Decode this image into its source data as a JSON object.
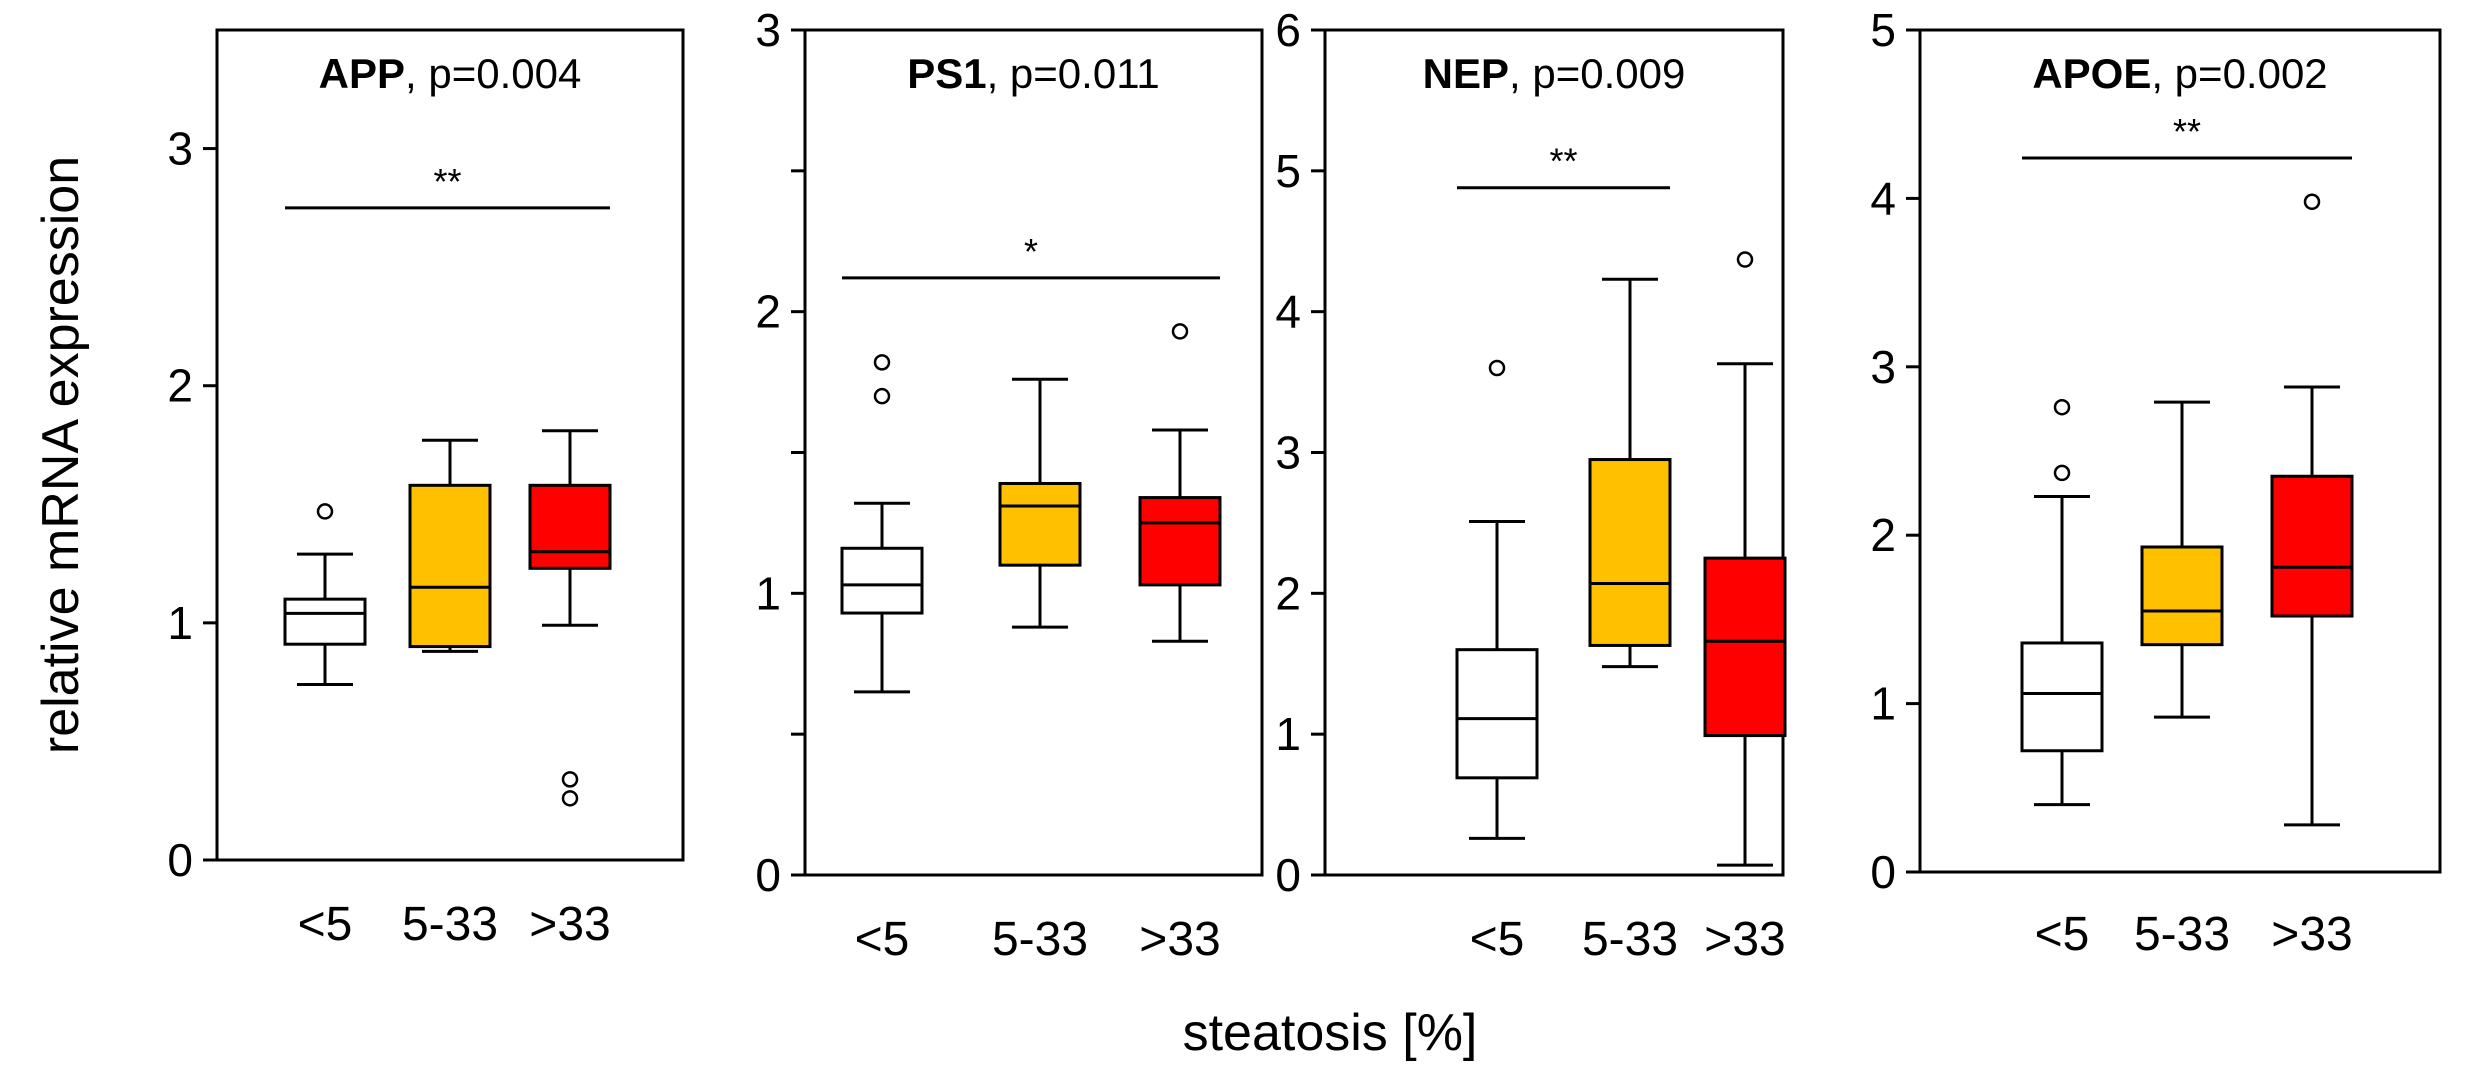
{
  "figure": {
    "ylabel": "relative mRNA expression",
    "xlabel": "steatosis [%]"
  },
  "colors": {
    "low": "#ffffff",
    "mid": "#ffc000",
    "high": "#ff0000"
  },
  "chart_data": [
    {
      "type": "box",
      "gene": "APP",
      "title_suffix": ", p=0.004",
      "categories": [
        "<5",
        "5-33",
        ">33"
      ],
      "ylim": [
        0,
        3.5
      ],
      "yticks": [
        0,
        1,
        2,
        3
      ],
      "ytick_labels": [
        "0",
        "1",
        "2",
        "3"
      ],
      "boxes": [
        {
          "category": "<5",
          "q1": 0.91,
          "median": 1.04,
          "q3": 1.1,
          "whisker_low": 0.74,
          "whisker_high": 1.29,
          "outliers": [
            1.47
          ]
        },
        {
          "category": "5-33",
          "q1": 0.9,
          "median": 1.15,
          "q3": 1.58,
          "whisker_low": 0.88,
          "whisker_high": 1.77,
          "outliers": []
        },
        {
          "category": ">33",
          "q1": 1.23,
          "median": 1.3,
          "q3": 1.58,
          "whisker_low": 0.99,
          "whisker_high": 1.81,
          "outliers": [
            0.34,
            0.26
          ]
        }
      ],
      "significance": {
        "from": "<5",
        "to": ">33",
        "level": 2.75,
        "label": "**"
      }
    },
    {
      "type": "box",
      "gene": "PS1",
      "title_suffix": ", p=0.011",
      "categories": [
        "<5",
        "5-33",
        ">33"
      ],
      "ylim": [
        0,
        3
      ],
      "yticks": [
        0,
        0.5,
        1,
        1.5,
        2,
        2.5,
        3
      ],
      "ytick_labels": [
        "0",
        "",
        "1",
        "",
        "2",
        "",
        "3"
      ],
      "boxes": [
        {
          "category": "<5",
          "q1": 0.93,
          "median": 1.03,
          "q3": 1.16,
          "whisker_low": 0.65,
          "whisker_high": 1.32,
          "outliers": [
            1.82,
            1.7
          ]
        },
        {
          "category": "5-33",
          "q1": 1.1,
          "median": 1.31,
          "q3": 1.39,
          "whisker_low": 0.88,
          "whisker_high": 1.76,
          "outliers": []
        },
        {
          "category": ">33",
          "q1": 1.03,
          "median": 1.25,
          "q3": 1.34,
          "whisker_low": 0.83,
          "whisker_high": 1.58,
          "outliers": [
            1.93
          ]
        }
      ],
      "significance": {
        "from": "<5",
        "to": ">33",
        "level": 2.12,
        "label": "*"
      }
    },
    {
      "type": "box",
      "gene": "NEP",
      "title_suffix": ", p=0.009",
      "categories": [
        "<5",
        "5-33",
        ">33"
      ],
      "ylim": [
        0,
        6
      ],
      "yticks": [
        0,
        1,
        2,
        3,
        4,
        5,
        6
      ],
      "ytick_labels": [
        "0",
        "1",
        "2",
        "3",
        "4",
        "5",
        "6"
      ],
      "boxes": [
        {
          "category": "<5",
          "q1": 0.69,
          "median": 1.11,
          "q3": 1.6,
          "whisker_low": 0.26,
          "whisker_high": 2.51,
          "outliers": [
            3.6
          ]
        },
        {
          "category": "5-33",
          "q1": 1.63,
          "median": 2.07,
          "q3": 2.95,
          "whisker_low": 1.48,
          "whisker_high": 4.23,
          "outliers": []
        },
        {
          "category": ">33",
          "q1": 0.99,
          "median": 1.66,
          "q3": 2.25,
          "whisker_low": 0.07,
          "whisker_high": 3.63,
          "outliers": [
            4.37
          ]
        }
      ],
      "significance": {
        "from": "<5",
        "to": "5-33",
        "level": 4.88,
        "label": "**"
      }
    },
    {
      "type": "box",
      "gene": "APOE",
      "title_suffix": ", p=0.002",
      "categories": [
        "<5",
        "5-33",
        ">33"
      ],
      "ylim": [
        0,
        5
      ],
      "yticks": [
        0,
        1,
        2,
        3,
        4,
        5
      ],
      "ytick_labels": [
        "0",
        "1",
        "2",
        "3",
        "4",
        "5"
      ],
      "boxes": [
        {
          "category": "<5",
          "q1": 0.72,
          "median": 1.06,
          "q3": 1.36,
          "whisker_low": 0.4,
          "whisker_high": 2.23,
          "outliers": [
            2.76,
            2.37
          ]
        },
        {
          "category": "5-33",
          "q1": 1.35,
          "median": 1.55,
          "q3": 1.93,
          "whisker_low": 0.92,
          "whisker_high": 2.79,
          "outliers": []
        },
        {
          "category": ">33",
          "q1": 1.52,
          "median": 1.81,
          "q3": 2.35,
          "whisker_low": 0.28,
          "whisker_high": 2.88,
          "outliers": [
            3.98
          ]
        }
      ],
      "significance": {
        "from": "<5",
        "to": ">33",
        "level": 4.24,
        "label": "**"
      }
    }
  ]
}
